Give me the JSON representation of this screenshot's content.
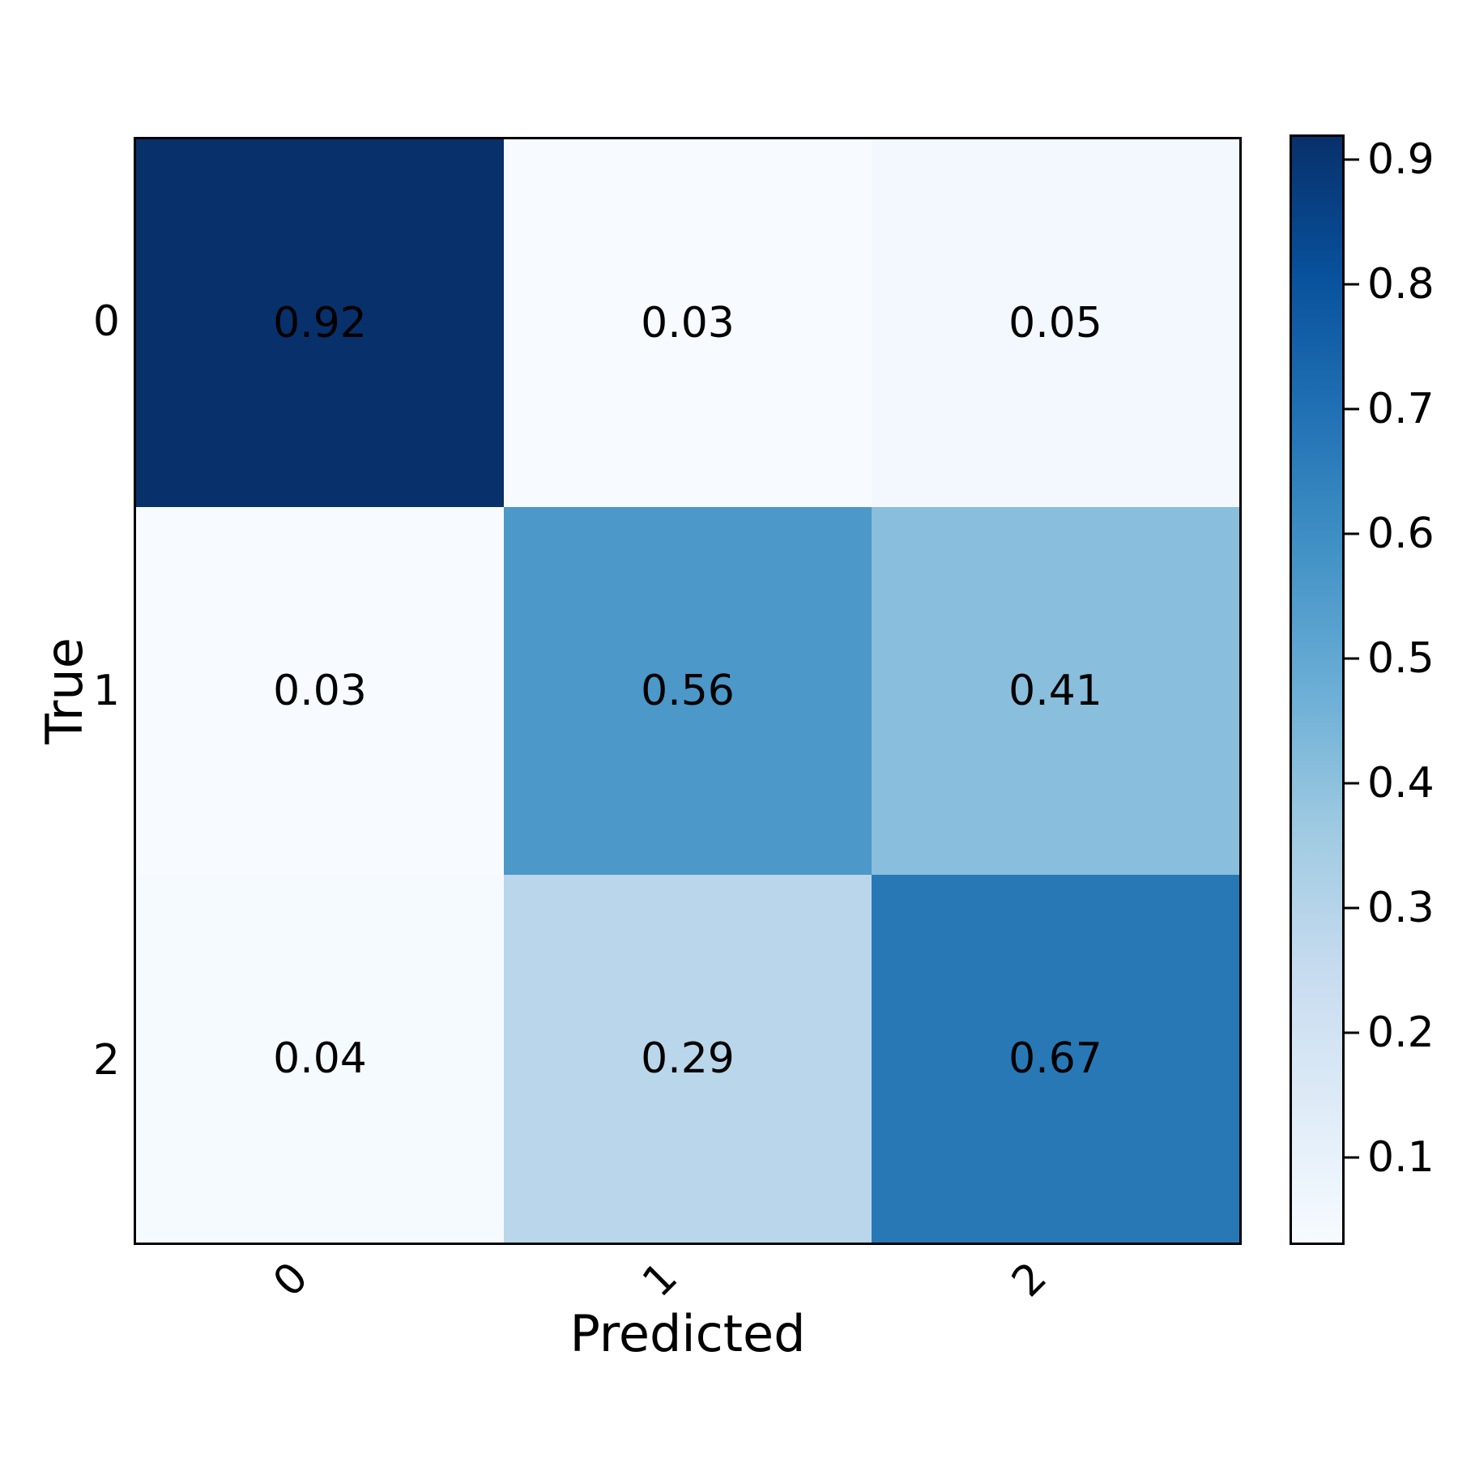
{
  "chart_data": {
    "type": "heatmap",
    "title": "",
    "xlabel": "Predicted",
    "ylabel": "True",
    "x_tick_labels": [
      "0",
      "1",
      "2"
    ],
    "y_tick_labels": [
      "0",
      "1",
      "2"
    ],
    "matrix": [
      [
        0.92,
        0.03,
        0.05
      ],
      [
        0.03,
        0.56,
        0.41
      ],
      [
        0.04,
        0.29,
        0.67
      ]
    ],
    "cell_labels": [
      [
        "0.92",
        "0.03",
        "0.05"
      ],
      [
        "0.03",
        "0.56",
        "0.41"
      ],
      [
        "0.04",
        "0.29",
        "0.67"
      ]
    ],
    "cell_colors": [
      [
        "#08306b",
        "#f7fbff",
        "#f2f8fd"
      ],
      [
        "#f7fbff",
        "#4b98c9",
        "#89bedc"
      ],
      [
        "#f5fafe",
        "#b9d6ea",
        "#2878b6"
      ]
    ],
    "cell_text_color": "#000000",
    "colormap": "Blues",
    "vmin": 0.03,
    "vmax": 0.92,
    "grid": false,
    "legend_position": "none",
    "colorbar": {
      "tick_labels": [
        "0.9",
        "0.8",
        "0.7",
        "0.6",
        "0.5",
        "0.4",
        "0.3",
        "0.2",
        "0.1"
      ],
      "tick_fractions_from_top": [
        0.0225,
        0.1348,
        0.2472,
        0.3596,
        0.4719,
        0.5843,
        0.6966,
        0.809,
        0.9213
      ],
      "gradient_stops": [
        {
          "pos": 0.0,
          "color": "#08306b"
        },
        {
          "pos": 0.125,
          "color": "#08519c"
        },
        {
          "pos": 0.25,
          "color": "#2171b5"
        },
        {
          "pos": 0.375,
          "color": "#4292c6"
        },
        {
          "pos": 0.5,
          "color": "#6baed6"
        },
        {
          "pos": 0.625,
          "color": "#9ecae1"
        },
        {
          "pos": 0.75,
          "color": "#c6dbef"
        },
        {
          "pos": 0.875,
          "color": "#deebf7"
        },
        {
          "pos": 1.0,
          "color": "#f7fbff"
        }
      ]
    }
  }
}
